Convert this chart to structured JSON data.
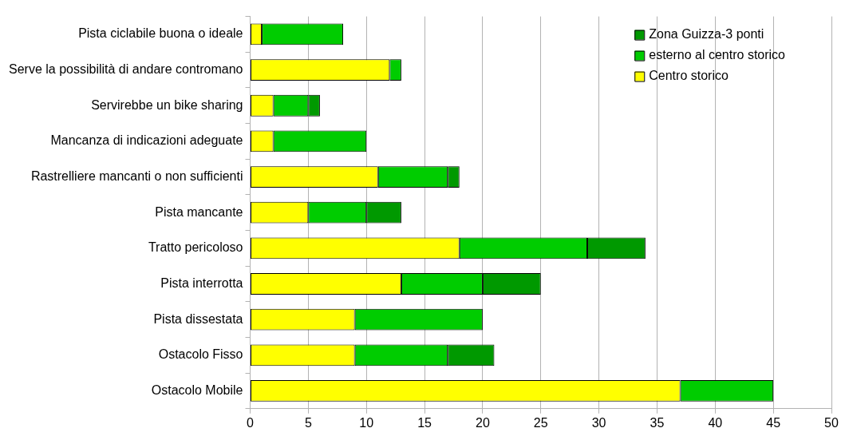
{
  "chart_data": {
    "type": "bar",
    "orientation": "horizontal",
    "stacked": true,
    "categories": [
      "Pista ciclabile buona o ideale",
      "Serve la possibilità di andare contromano",
      "Servirebbe un bike sharing",
      "Mancanza di indicazioni adeguate",
      "Rastrelliere mancanti o non sufficienti",
      "Pista mancante",
      "Tratto pericoloso",
      "Pista interrotta",
      "Pista dissestata",
      "Ostacolo Fisso",
      "Ostacolo Mobile"
    ],
    "series": [
      {
        "name": "Centro storico",
        "color": "#ffff00",
        "values": [
          1,
          12,
          2,
          2,
          11,
          5,
          18,
          13,
          9,
          9,
          37
        ]
      },
      {
        "name": "esterno al centro storico",
        "color": "#00cc00",
        "values": [
          7,
          1,
          3,
          8,
          6,
          5,
          11,
          7,
          11,
          8,
          8
        ]
      },
      {
        "name": "Zona Guizza-3 ponti",
        "color": "#009900",
        "values": [
          null,
          null,
          1,
          null,
          1,
          3,
          5,
          5,
          null,
          4,
          null
        ]
      }
    ],
    "xlim": [
      0,
      50
    ],
    "xticks": [
      0,
      5,
      10,
      15,
      20,
      25,
      30,
      35,
      40,
      45,
      50
    ],
    "grid": "x",
    "legend": "top right"
  }
}
